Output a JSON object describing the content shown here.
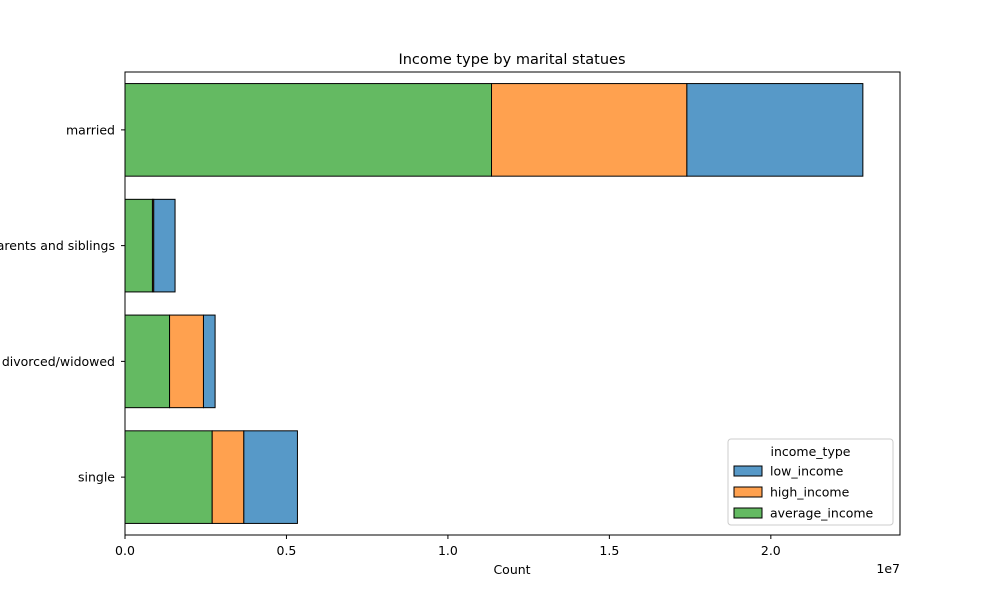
{
  "chart_data": {
    "type": "bar",
    "orientation": "horizontal",
    "stacked": true,
    "title": "Income type by marital statues",
    "xlabel": "Count",
    "ylabel": "",
    "x_scale_label": "1e7",
    "xlim": [
      0,
      24000000
    ],
    "xticks": [
      0,
      5000000,
      10000000,
      15000000,
      20000000
    ],
    "xtick_labels": [
      "0.0",
      "0.5",
      "1.0",
      "1.5",
      "2.0"
    ],
    "categories": [
      "married",
      "lives with parents and siblings",
      "divorced/widowed",
      "single"
    ],
    "series": [
      {
        "name": "average_income",
        "color": "#64ba62",
        "values": [
          11350000,
          850000,
          1380000,
          2700000
        ]
      },
      {
        "name": "high_income",
        "color": "#ffa14f",
        "values": [
          6050000,
          40000,
          1050000,
          980000
        ]
      },
      {
        "name": "low_income",
        "color": "#5799c8",
        "values": [
          5450000,
          660000,
          360000,
          1660000
        ]
      }
    ],
    "legend": {
      "title": "income_type",
      "placement": "lower right",
      "entries": [
        "low_income",
        "high_income",
        "average_income"
      ]
    },
    "grid": false
  }
}
